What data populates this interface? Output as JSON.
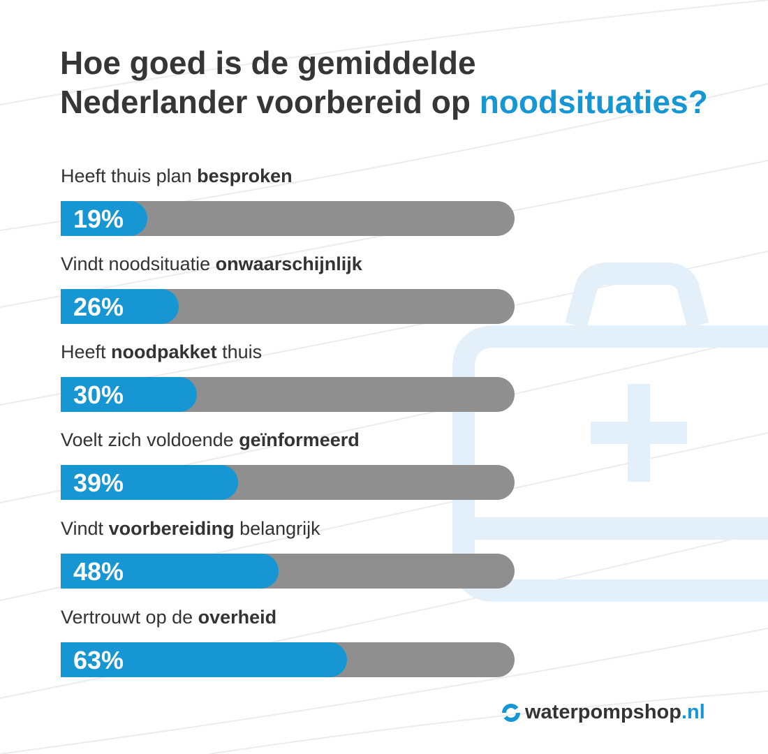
{
  "title": {
    "line1": "Hoe goed is de gemiddelde",
    "line2_plain": "Nederlander voorbereid op ",
    "line2_accent": "noodsituaties?"
  },
  "colors": {
    "accent": "#1796d4",
    "track": "#8f8f8f",
    "text": "#333333",
    "icon": "#e3f0f9"
  },
  "background_icon": "first-aid-kit-icon",
  "chart_data": {
    "type": "bar",
    "orientation": "horizontal",
    "xlim": [
      0,
      100
    ],
    "categories": [
      {
        "plain1": "Heeft thuis plan ",
        "bold": "besproken",
        "plain2": ""
      },
      {
        "plain1": "Vindt noodsituatie ",
        "bold": "onwaarschijnlijk",
        "plain2": ""
      },
      {
        "plain1": "Heeft ",
        "bold": "noodpakket",
        "plain2": " thuis"
      },
      {
        "plain1": "Voelt zich voldoende ",
        "bold": "geïnformeerd",
        "plain2": ""
      },
      {
        "plain1": "Vindt ",
        "bold": "voorbereiding",
        "plain2": " belangrijk"
      },
      {
        "plain1": "Vertrouwt op de ",
        "bold": "overheid",
        "plain2": ""
      }
    ],
    "values": [
      19,
      26,
      30,
      39,
      48,
      63
    ],
    "value_labels": [
      "19%",
      "26%",
      "30%",
      "39%",
      "48%",
      "63%"
    ]
  },
  "logo": {
    "name": "waterpompshop",
    "tld": ".nl"
  }
}
